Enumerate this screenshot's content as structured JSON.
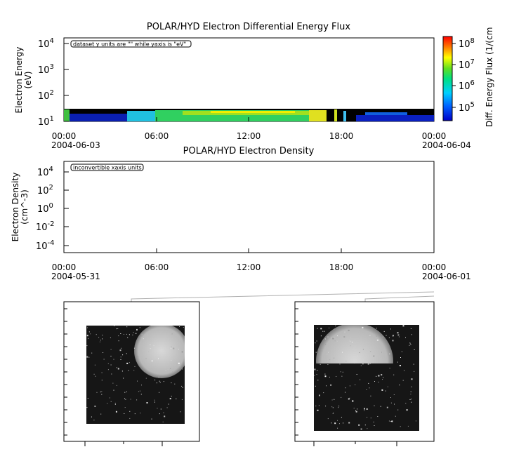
{
  "panel1": {
    "title": "POLAR/HYD  Electron Differential Energy Flux",
    "ylabel_line1": "Electron Energy",
    "ylabel_line2": "(eV)",
    "annotation": "dataset y units are \"\" while yaxis is \"eV\"",
    "x_ticks": [
      "00:00",
      "06:00",
      "12:00",
      "18:00",
      "00:00"
    ],
    "date_left": "2004-06-03",
    "date_right": "2004-06-04",
    "colorbar_label": "Diff. Energy Flux (1/(cm",
    "colorbar_ticks": [
      "10^8",
      "10^7",
      "10^6",
      "10^5"
    ]
  },
  "panel2": {
    "title": "POLAR/HYD  Electron Density",
    "ylabel_line1": "Electron Density",
    "ylabel_line2": "(cm^-3)",
    "annotation": "inconvertible xaxis units",
    "x_ticks": [
      "00:00",
      "06:00",
      "12:00",
      "18:00",
      "00:00"
    ],
    "date_left": "2004-05-31",
    "date_right": "2004-06-01"
  },
  "chart_data": [
    {
      "type": "heatmap",
      "title": "POLAR/HYD  Electron Differential Energy Flux",
      "xlabel": "",
      "ylabel": "Electron Energy (eV)",
      "x_range": [
        "2004-06-03 00:00",
        "2004-06-04 00:00"
      ],
      "x_ticks": [
        "00:00",
        "06:00",
        "12:00",
        "18:00",
        "00:00"
      ],
      "y_scale": "log",
      "y_range": [
        10,
        20000
      ],
      "y_ticks": [
        10,
        100,
        1000,
        10000
      ],
      "y_tick_labels": [
        "10^1",
        "10^2",
        "10^3",
        "10^4"
      ],
      "z_label": "Diff. Energy Flux (1/(cm",
      "z_scale": "log",
      "z_range": [
        20000,
        200000000
      ],
      "z_ticks": [
        "10^5",
        "10^6",
        "10^7",
        "10^8"
      ],
      "colormap": [
        "#0000c8",
        "#00a0ff",
        "#00e0a0",
        "#40e040",
        "#ffff00",
        "#ff8000",
        "#ff0000"
      ],
      "data_energy_range_eV": [
        10,
        28
      ],
      "data_time_range": [
        "2004-06-03 00:00",
        "2004-06-04 00:00"
      ],
      "legend": "colorbar right",
      "grid": false
    },
    {
      "type": "line",
      "title": "POLAR/HYD  Electron Density",
      "xlabel": "",
      "ylabel": "Electron Density (cm^-3)",
      "x_range": [
        "2004-05-31 00:00",
        "2004-06-01 00:00"
      ],
      "x_ticks": [
        "00:00",
        "06:00",
        "12:00",
        "18:00",
        "00:00"
      ],
      "y_scale": "log",
      "y_range": [
        3e-05,
        100000
      ],
      "y_ticks": [
        0.0001,
        0.01,
        1,
        100,
        10000
      ],
      "y_tick_labels": [
        "10^-4",
        "10^-2",
        "10^0",
        "10^2",
        "10^4"
      ],
      "series": [],
      "grid": false
    }
  ]
}
